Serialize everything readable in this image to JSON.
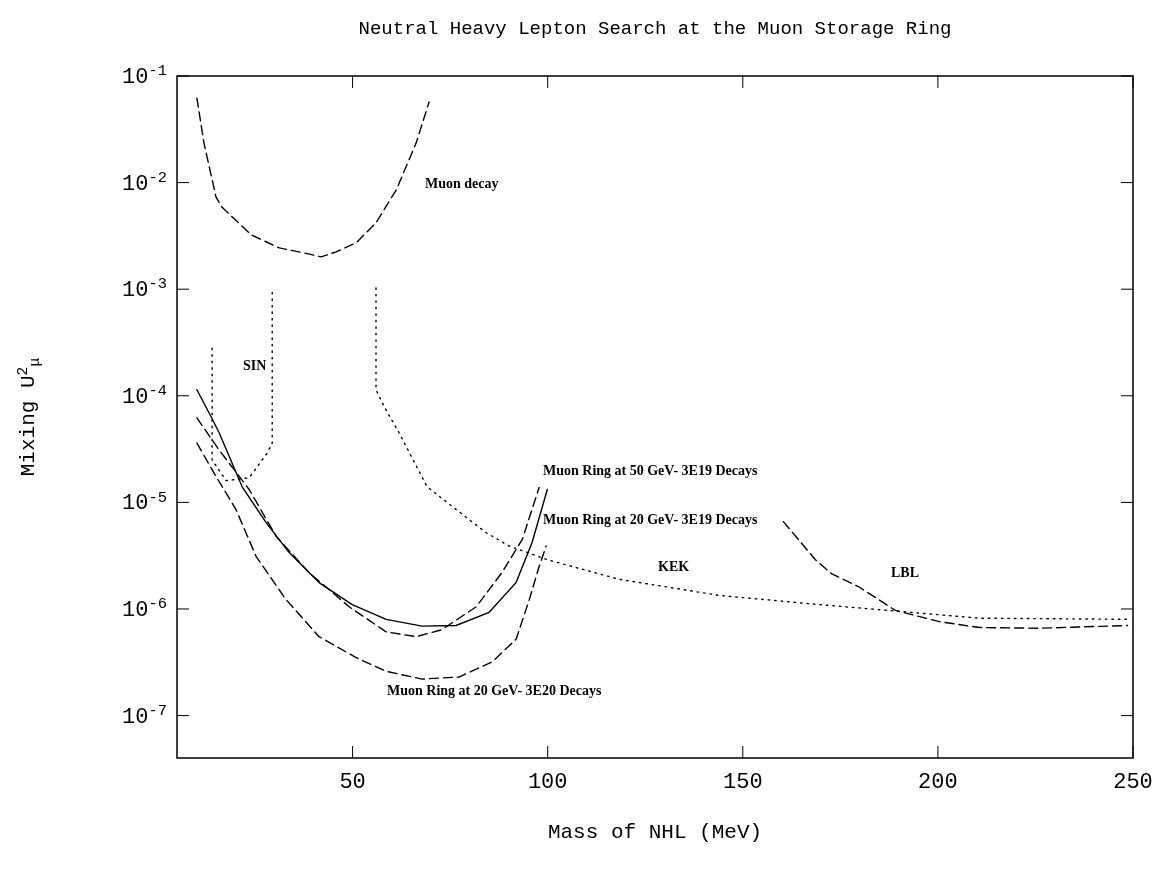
{
  "chart_data": {
    "type": "line",
    "title": "Neutral Heavy Lepton Search at the Muon Storage Ring",
    "xlabel": "Mass of NHL (MeV)",
    "ylabel": "Mixing U$^{2}$$_{μ}$",
    "log": "y",
    "xlim": [
      5,
      250
    ],
    "xticks": [
      50,
      100,
      150,
      200,
      250
    ],
    "ylim": [
      4e-08,
      0.1
    ],
    "yticks": [
      {
        "value": 0.1,
        "label": "10$^{-1}$"
      },
      {
        "value": 0.01,
        "label": "10$^{-2}$"
      },
      {
        "value": 0.001,
        "label": "10$^{-3}$"
      },
      {
        "value": 0.0001,
        "label": "10$^{-4}$"
      },
      {
        "value": 1e-05,
        "label": "10$^{-5}$"
      },
      {
        "value": 1e-06,
        "label": "10$^{-6}$"
      },
      {
        "value": 1e-07,
        "label": "10$^{-7}$"
      }
    ],
    "grid": false,
    "legend": false,
    "series": [
      {
        "name": "Muon decay",
        "color": "#000000",
        "line_style": "dashed",
        "x": [
          10.1,
          11.9,
          15.0,
          16.5,
          24.0,
          31.2,
          37.6,
          41.9,
          45.8,
          50.9,
          56.0,
          61.2,
          66.3,
          69.6
        ],
        "values": [
          0.062,
          0.0236,
          0.0073,
          0.0059,
          0.00324,
          0.00244,
          0.00219,
          0.00201,
          0.00224,
          0.00272,
          0.00419,
          0.00855,
          0.0236,
          0.057
        ]
      },
      {
        "name": "SIN",
        "color": "#000000",
        "line_style": "dotted",
        "x": [
          14.0,
          14.0,
          17.6,
          23.5,
          28.1,
          29.4,
          29.4
        ],
        "values": [
          0.00028,
          2.5e-05,
          1.6e-05,
          1.7e-05,
          2.9e-05,
          3.6e-05,
          0.001
        ]
      },
      {
        "name": "KEK",
        "color": "#000000",
        "line_style": "dotted",
        "x": [
          56.0,
          56.0,
          58.1,
          61.9,
          69.1,
          76.5,
          84.2,
          90.1,
          99.9,
          118.3,
          144.0,
          169.6,
          190.1,
          210.6,
          248.6
        ],
        "values": [
          0.00103,
          0.000114,
          7.9e-05,
          4.5e-05,
          1.4e-05,
          8.6e-06,
          5.2e-06,
          3.9e-06,
          2.9e-06,
          1.9e-06,
          1.34e-06,
          1.1e-06,
          9.5e-07,
          8.2e-07,
          8e-07
        ]
      },
      {
        "name": "LBL",
        "color": "#000000",
        "line_style": "dashed",
        "x": [
          160.4,
          168.6,
          172.7,
          179.9,
          189.1,
          200.4,
          210.6,
          226.0,
          248.6
        ],
        "values": [
          6.6e-06,
          2.9e-06,
          2.15e-06,
          1.6e-06,
          9.7e-07,
          7.6e-07,
          6.7e-07,
          6.6e-07,
          7e-07
        ]
      },
      {
        "name": "Muon Ring at 20 GeV- 3E19 Decays",
        "color": "#000000",
        "line_style": "solid",
        "x": [
          10.1,
          13.7,
          15.8,
          21.7,
          27.8,
          33.7,
          41.4,
          49.9,
          58.6,
          67.8,
          76.5,
          85.0,
          91.9,
          96.0,
          99.9
        ],
        "values": [
          0.000114,
          6.4e-05,
          4.5e-05,
          1.4e-05,
          6.5e-06,
          3.4e-06,
          1.77e-06,
          1.1e-06,
          8e-07,
          6.9e-07,
          7e-07,
          9.3e-07,
          1.77e-06,
          4.2e-06,
          1.32e-05
        ]
      },
      {
        "name": "Muon Ring at 50 GeV- 3E19 Decays",
        "color": "#000000",
        "line_style": "dashed",
        "x": [
          10.1,
          15.8,
          23.5,
          30.4,
          38.8,
          49.1,
          58.6,
          66.3,
          72.9,
          81.7,
          88.3,
          93.5,
          97.8
        ],
        "values": [
          6.2e-05,
          3.1e-05,
          1.32e-05,
          4.8e-06,
          2.2e-06,
          1.05e-06,
          6.1e-07,
          5.5e-07,
          6.4e-07,
          1.05e-06,
          2.2e-06,
          4.5e-06,
          1.38e-05
        ]
      },
      {
        "name": "Muon Ring at 20 GeV- 3E20 Decays",
        "color": "#000000",
        "line_style": "dashed",
        "x": [
          10.1,
          15.0,
          20.1,
          25.3,
          32.9,
          41.4,
          50.9,
          58.6,
          67.8,
          77.3,
          85.8,
          91.9,
          95.3,
          97.8,
          99.6
        ],
        "values": [
          3.6e-05,
          1.75e-05,
          8.6e-06,
          3.1e-06,
          1.23e-06,
          5.5e-07,
          3.5e-07,
          2.6e-07,
          2.2e-07,
          2.3e-07,
          3.2e-07,
          5.2e-07,
          1.23e-06,
          2.5e-06,
          3.9e-06
        ]
      }
    ]
  }
}
